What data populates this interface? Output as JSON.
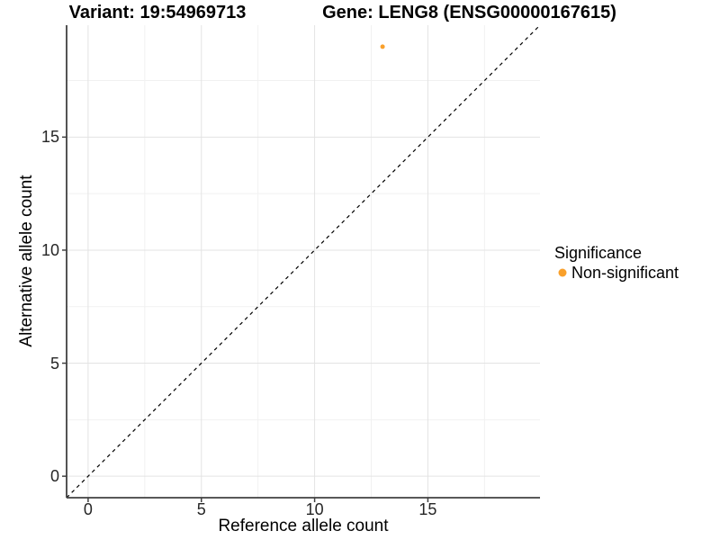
{
  "header": {
    "variant_title": "Variant: 19:54969713",
    "gene_title": "Gene: LENG8 (ENSG00000167615)"
  },
  "chart_data": {
    "type": "scatter",
    "xlabel": "Reference allele count",
    "ylabel": "Alternative allele count",
    "xlim": [
      -0.95,
      19.95
    ],
    "ylim": [
      -0.95,
      19.95
    ],
    "x_major_ticks": [
      0,
      5,
      10,
      15
    ],
    "y_major_ticks": [
      0,
      5,
      10,
      15
    ],
    "x_minor_ticks": [
      2.5,
      7.5,
      12.5,
      17.5
    ],
    "y_minor_ticks": [
      2.5,
      7.5,
      12.5,
      17.5
    ],
    "grid": true,
    "identity_line": {
      "slope": 1,
      "intercept": 0,
      "style": "dashed",
      "color": "#000000"
    },
    "series": [
      {
        "name": "Non-significant",
        "color": "#F9A02B",
        "point_radius": 2.5,
        "points": [
          {
            "x": 13,
            "y": 19
          }
        ]
      }
    ],
    "legend": {
      "title": "Significance",
      "position": "right",
      "items": [
        {
          "label": "Non-significant",
          "color": "#F9A02B"
        }
      ]
    }
  },
  "colors": {
    "background": "#FFFFFF",
    "grid_major": "#E3E3E3",
    "grid_minor": "#F1F1F1",
    "axis_line": "#404040",
    "tick_mark": "#404040",
    "tick_text": "#262626"
  }
}
